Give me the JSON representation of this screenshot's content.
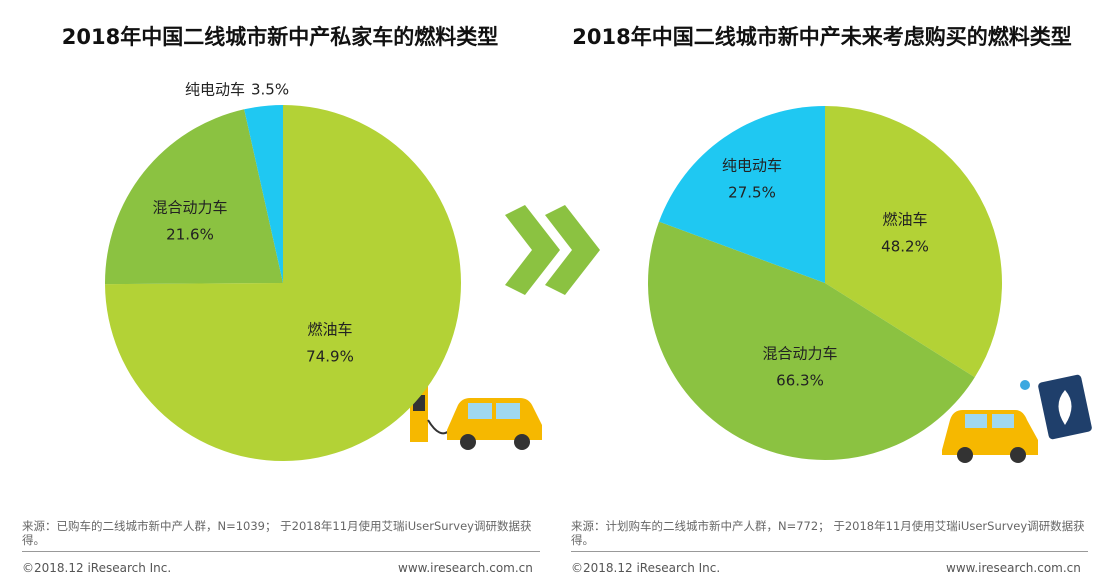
{
  "chart_data": [
    {
      "type": "pie",
      "title": "2018年中国二线城市新中产私家车的燃料类型",
      "categories": [
        "燃油车",
        "混合动力车",
        "纯电动车"
      ],
      "values": [
        74.9,
        21.6,
        3.5
      ],
      "value_labels": [
        "74.9%",
        "21.6%",
        "3.5%"
      ],
      "colors": [
        "#b3d236",
        "#8bc241",
        "#1fc8f2"
      ]
    },
    {
      "type": "pie",
      "title": "2018年中国二线城市新中产未来考虑购买的燃料类型",
      "categories": [
        "燃油车",
        "混合动力车",
        "纯电动车"
      ],
      "values": [
        48.2,
        66.3,
        27.5
      ],
      "value_labels": [
        "48.2%",
        "66.3%",
        "27.5%"
      ],
      "colors": [
        "#b3d236",
        "#8bc241",
        "#1fc8f2"
      ]
    }
  ],
  "footers": [
    {
      "source": "来源：已购车的二线城市新中产人群，N=1039； 于2018年11月使用艾瑞iUserSurvey调研数据获得。",
      "copyright": "©2018.12 iResearch Inc.",
      "website": "www.iresearch.com.cn"
    },
    {
      "source": "来源：计划购车的二线城市新中产人群，N=772； 于2018年11月使用艾瑞iUserSurvey调研数据获得。",
      "copyright": "©2018.12 iResearch Inc.",
      "website": "www.iresearch.com.cn"
    }
  ]
}
